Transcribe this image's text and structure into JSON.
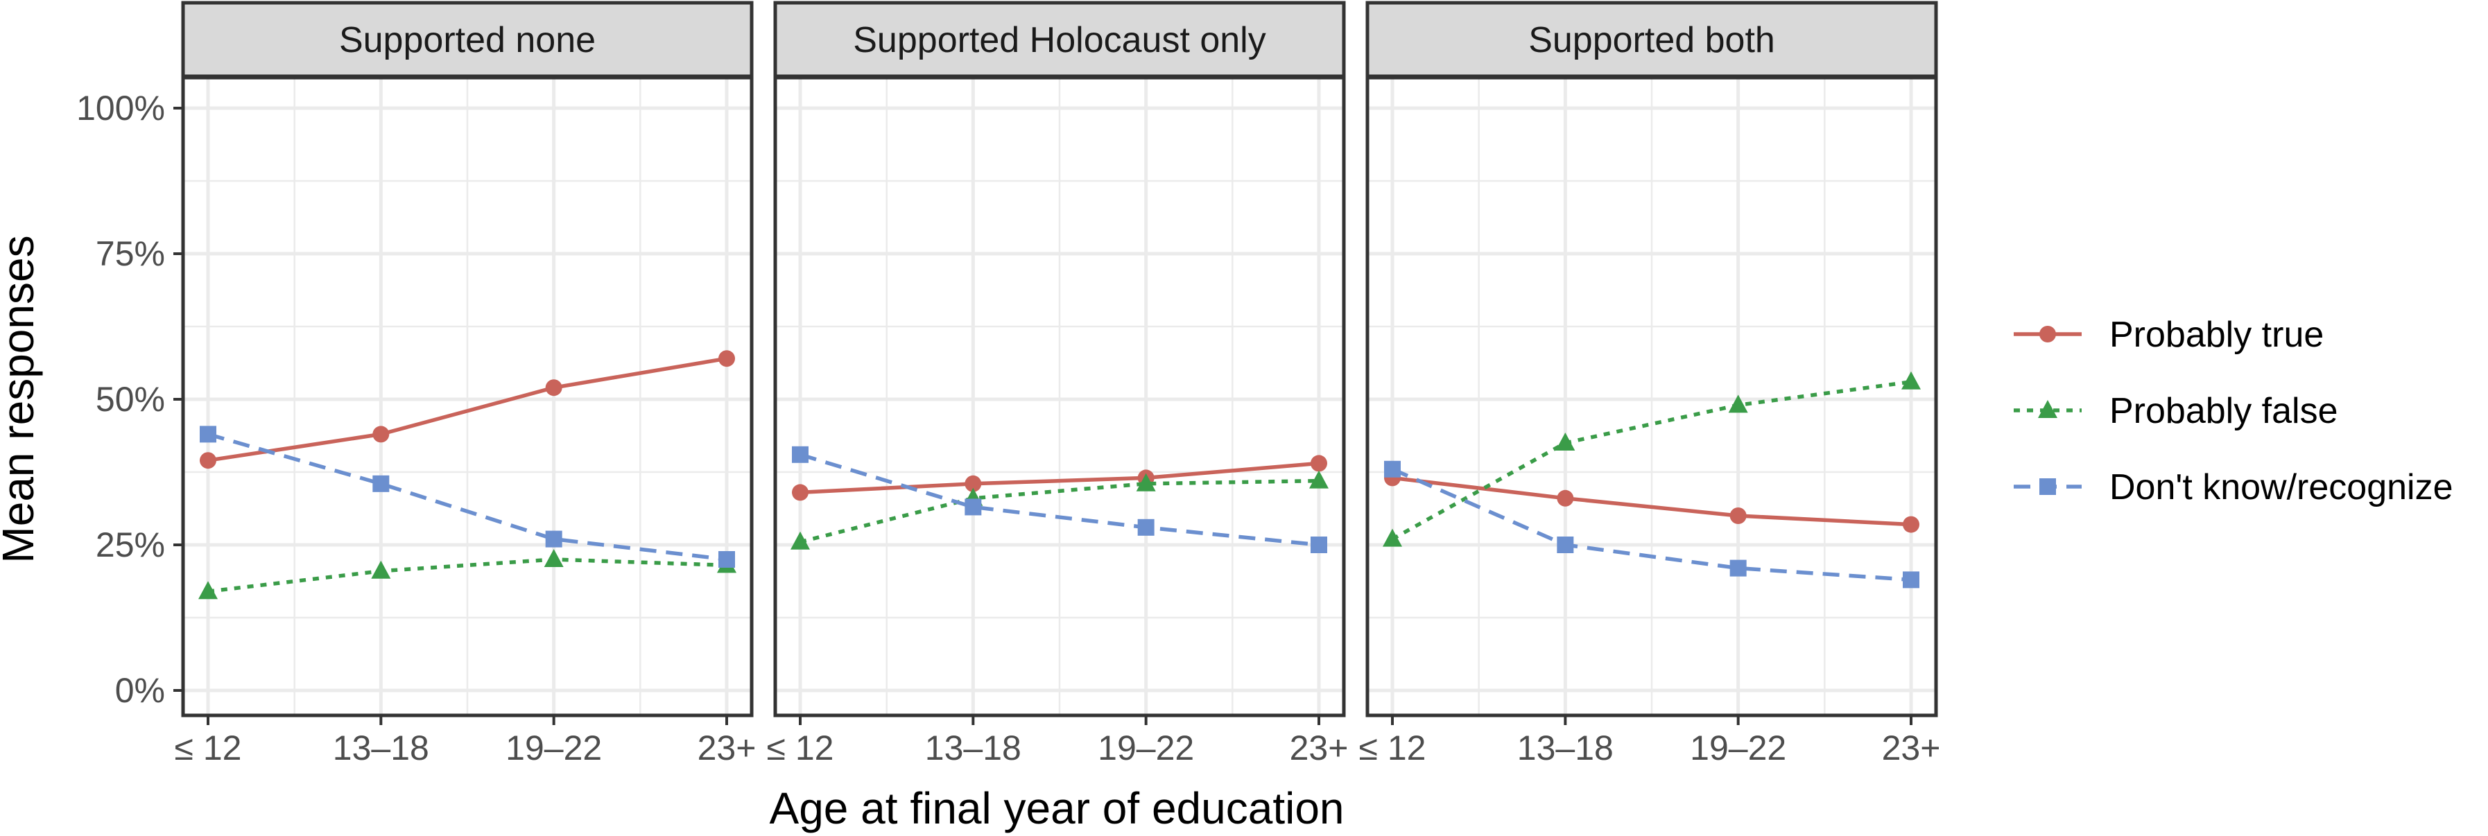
{
  "chart_data": {
    "type": "line",
    "facets": [
      "Supported none",
      "Supported Holocaust only",
      "Supported both"
    ],
    "categories": [
      "≤ 12",
      "13–18",
      "19–22",
      "23+"
    ],
    "xlabel": "Age at final year of education",
    "ylabel": "Mean responses",
    "ylim": [
      0,
      100
    ],
    "yticks": [
      0,
      25,
      50,
      75,
      100
    ],
    "ytick_labels": [
      "0%",
      "25%",
      "50%",
      "75%",
      "100%"
    ],
    "grid": true,
    "legend_position": "right",
    "series": [
      {
        "name": "Probably true",
        "color": "#c9635a",
        "marker": "circle",
        "linestyle": "solid",
        "values": [
          [
            39.5,
            44,
            52,
            57
          ],
          [
            34,
            35.5,
            36.5,
            39
          ],
          [
            36.5,
            33,
            30,
            28.5
          ]
        ]
      },
      {
        "name": "Probably false",
        "color": "#3a9c48",
        "marker": "triangle",
        "linestyle": "dotted",
        "values": [
          [
            17,
            20.5,
            22.5,
            21.5
          ],
          [
            25.5,
            33,
            35.5,
            36
          ],
          [
            26,
            42.5,
            49,
            53
          ]
        ]
      },
      {
        "name": "Don't know/recognize",
        "color": "#6b8fcf",
        "marker": "square",
        "linestyle": "dashed",
        "values": [
          [
            44,
            35.5,
            26,
            22.5
          ],
          [
            40.5,
            31.5,
            28,
            25
          ],
          [
            38,
            25,
            21,
            19
          ]
        ]
      }
    ]
  }
}
